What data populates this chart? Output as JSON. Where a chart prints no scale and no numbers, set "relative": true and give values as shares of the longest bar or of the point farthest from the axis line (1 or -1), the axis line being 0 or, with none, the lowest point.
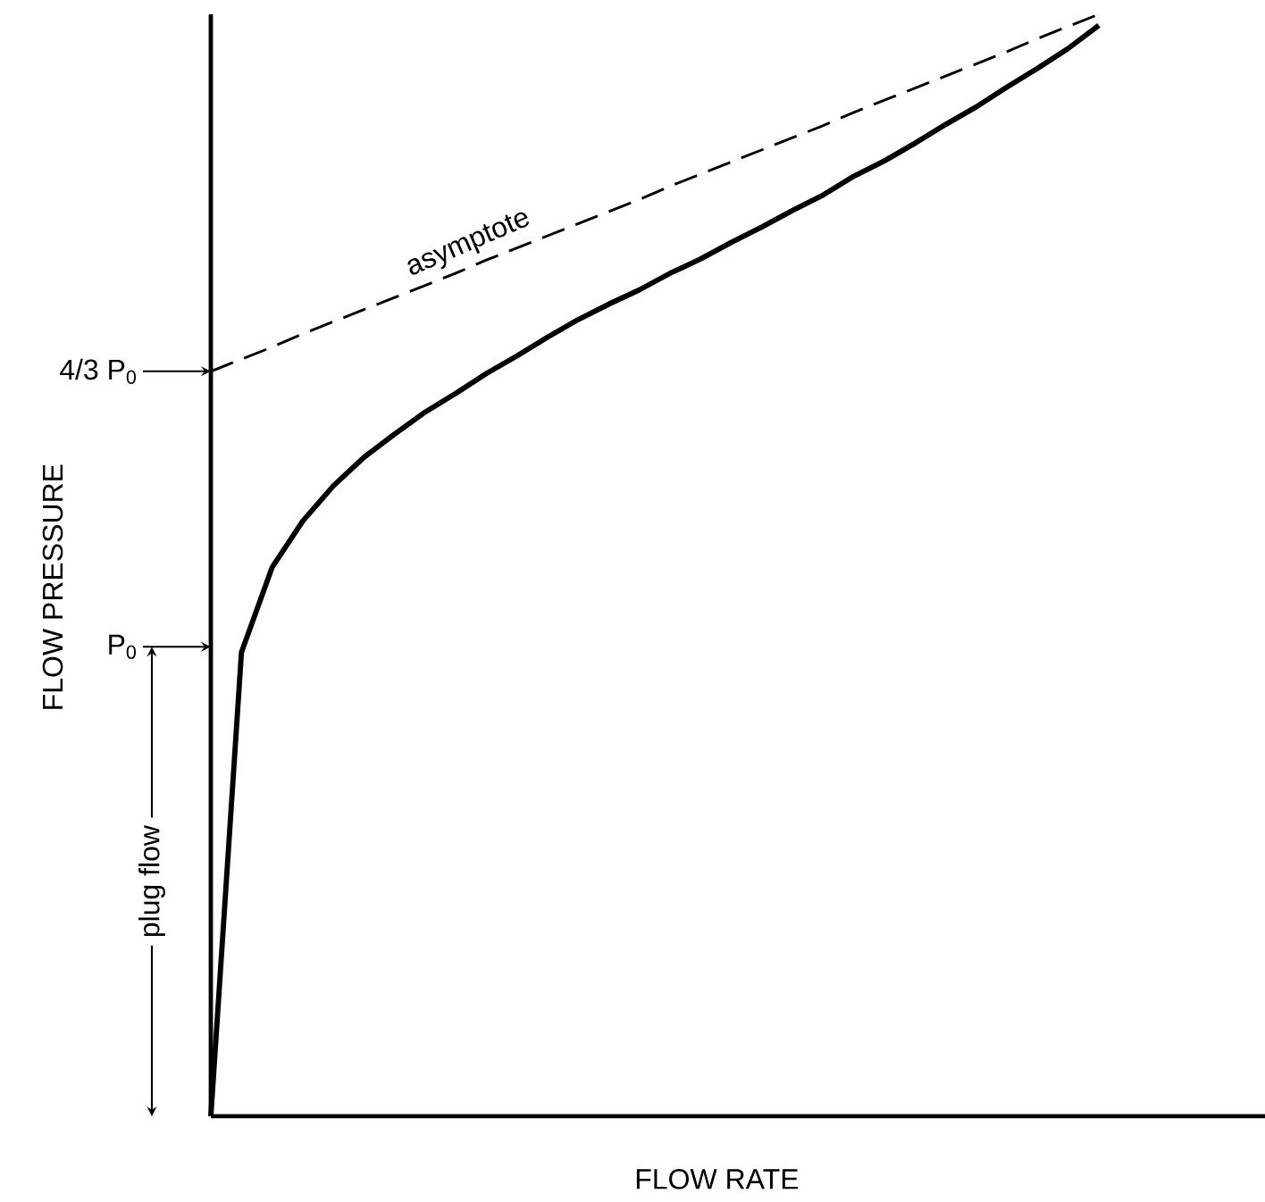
{
  "chart_data": {
    "type": "line",
    "xlabel": "FLOW RATE",
    "ylabel": "FLOW PRESSURE",
    "relative": true,
    "categories": [
      null,
      null,
      null,
      null,
      null,
      null,
      null,
      null,
      null,
      null,
      null,
      null,
      null,
      null,
      null,
      null,
      null,
      null,
      null,
      null,
      null,
      null,
      null,
      null,
      null,
      null,
      null,
      null,
      null,
      null
    ],
    "series": [
      {
        "color": "#000000",
        "line_style": "solid",
        "values": [
          0,
          0.421,
          0.498,
          0.54,
          0.572,
          0.598,
          0.619,
          0.639,
          0.656,
          0.674,
          0.69,
          0.707,
          0.723,
          0.737,
          0.75,
          0.765,
          0.778,
          0.793,
          0.807,
          0.822,
          0.836,
          0.853,
          0.867,
          0.883,
          0.9,
          0.916,
          0.934,
          0.951,
          0.969,
          0.99
        ]
      },
      {
        "name": "asymptote",
        "color": "#000000",
        "line_style": "dashed",
        "values": [
          0.676,
          0.687,
          0.698,
          0.71,
          0.721,
          0.732,
          0.743,
          0.754,
          0.765,
          0.777,
          0.788,
          0.799,
          0.81,
          0.821,
          0.832,
          0.844,
          0.855,
          0.866,
          0.877,
          0.888,
          0.899,
          0.911,
          0.922,
          0.933,
          0.944,
          0.955,
          0.966,
          0.978,
          0.989,
          1.0
        ]
      }
    ],
    "annotations": [
      "P$_{0}$",
      "4/3 P$_{0}$",
      "plug flow"
    ],
    "marker": "none",
    "legend": false
  }
}
